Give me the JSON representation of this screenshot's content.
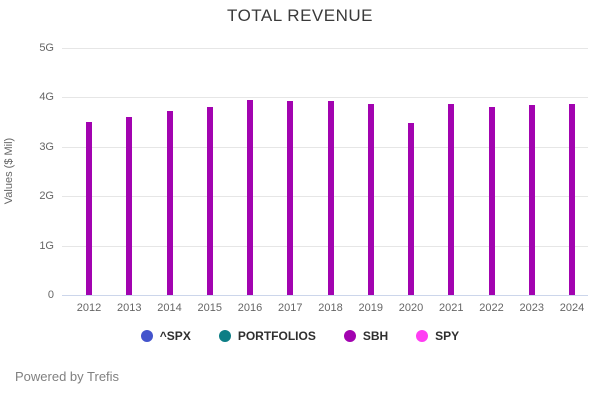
{
  "chart_data": {
    "type": "bar",
    "title": "TOTAL REVENUE",
    "ylabel": "Values ($ Mil)",
    "xlabel": "",
    "categories": [
      "2012",
      "2013",
      "2014",
      "2015",
      "2016",
      "2017",
      "2018",
      "2019",
      "2020",
      "2021",
      "2022",
      "2023",
      "2024"
    ],
    "series": [
      {
        "name": "SBH",
        "color": "#a203b0",
        "values": [
          3.51,
          3.61,
          3.73,
          3.81,
          3.95,
          3.93,
          3.93,
          3.86,
          3.49,
          3.87,
          3.8,
          3.84,
          3.87
        ]
      }
    ],
    "value_unit": "G",
    "ylim": [
      0,
      5
    ],
    "yticks": [
      "0",
      "1G",
      "2G",
      "3G",
      "4G",
      "5G"
    ],
    "grid": "horizontal",
    "gridline_color": "#e6e6e6",
    "axis_line_color": "#ccd6eb",
    "legend_position": "bottom"
  },
  "legend": {
    "items": [
      {
        "label": "^SPX",
        "color": "#4454cc"
      },
      {
        "label": "PORTFOLIOS",
        "color": "#0d7e85"
      },
      {
        "label": "SBH",
        "color": "#a203b0"
      },
      {
        "label": "SPY",
        "color": "#ff3df3"
      }
    ]
  },
  "footer": {
    "text": "Powered by Trefis"
  }
}
